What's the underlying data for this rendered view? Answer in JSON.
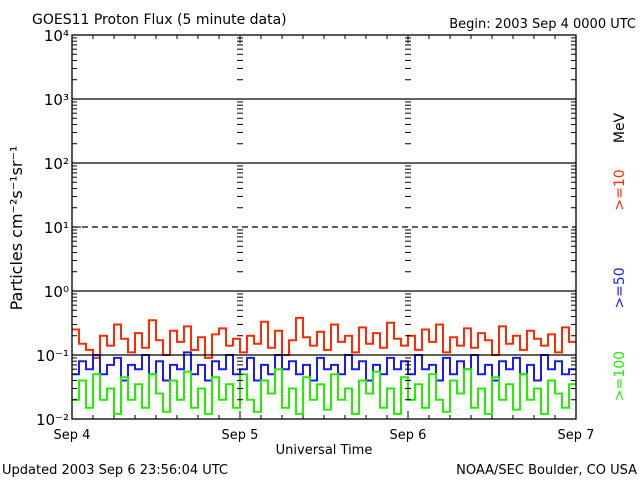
{
  "chart_data": {
    "type": "line",
    "title": "GOES11 Proton Flux (5 minute data)",
    "begin_label": "Begin: 2003 Sep 4 0000 UTC",
    "xlabel": "Universal Time",
    "ylabel": "Particles cm⁻²s⁻¹sr⁻¹",
    "y_scale": "log",
    "ylim": [
      0.01,
      10000
    ],
    "y_ticks": [
      {
        "value": 10000,
        "label": "10⁴"
      },
      {
        "value": 1000,
        "label": "10³"
      },
      {
        "value": 100,
        "label": "10²"
      },
      {
        "value": 10,
        "label": "10¹"
      },
      {
        "value": 1,
        "label": "10⁰"
      },
      {
        "value": 0.1,
        "label": "10⁻¹"
      },
      {
        "value": 0.01,
        "label": "10⁻²"
      }
    ],
    "x_ticks": [
      "Sep 4",
      "Sep 5",
      "Sep 6",
      "Sep 7"
    ],
    "x_unit": "hours since 2003 Sep 4 0000 UTC",
    "xlim": [
      0,
      72
    ],
    "threshold_lines": [
      {
        "value": 1000,
        "style": "solid"
      },
      {
        "value": 100,
        "style": "solid"
      },
      {
        "value": 10,
        "style": "dashed"
      },
      {
        "value": 1,
        "style": "solid"
      },
      {
        "value": 0.1,
        "style": "solid"
      }
    ],
    "unit_label": "MeV",
    "series": [
      {
        "name": ">=10",
        "color": "#ff2a00",
        "values": [
          0.25,
          0.15,
          0.12,
          0.09,
          0.2,
          0.14,
          0.3,
          0.18,
          0.11,
          0.22,
          0.13,
          0.35,
          0.17,
          0.1,
          0.24,
          0.16,
          0.28,
          0.12,
          0.19,
          0.09,
          0.21,
          0.26,
          0.14,
          0.18,
          0.11,
          0.2,
          0.15,
          0.33,
          0.13,
          0.24,
          0.1,
          0.17,
          0.38,
          0.19,
          0.14,
          0.23,
          0.12,
          0.3,
          0.16,
          0.2,
          0.11,
          0.27,
          0.15,
          0.22,
          0.13,
          0.32,
          0.18,
          0.14,
          0.2,
          0.12,
          0.25,
          0.16,
          0.3,
          0.11,
          0.19,
          0.14,
          0.26,
          0.13,
          0.22,
          0.17,
          0.1,
          0.28,
          0.15,
          0.2,
          0.12,
          0.24,
          0.18,
          0.14,
          0.21,
          0.11,
          0.27,
          0.16
        ]
      },
      {
        "name": ">=50",
        "color": "#1a1aff",
        "values": [
          0.05,
          0.08,
          0.06,
          0.1,
          0.05,
          0.07,
          0.09,
          0.04,
          0.07,
          0.06,
          0.1,
          0.05,
          0.08,
          0.04,
          0.07,
          0.06,
          0.11,
          0.05,
          0.07,
          0.04,
          0.08,
          0.06,
          0.1,
          0.05,
          0.06,
          0.09,
          0.04,
          0.07,
          0.05,
          0.1,
          0.06,
          0.08,
          0.05,
          0.07,
          0.04,
          0.09,
          0.06,
          0.07,
          0.05,
          0.1,
          0.06,
          0.08,
          0.04,
          0.07,
          0.05,
          0.09,
          0.06,
          0.08,
          0.05,
          0.1,
          0.06,
          0.07,
          0.04,
          0.09,
          0.05,
          0.08,
          0.06,
          0.1,
          0.05,
          0.07,
          0.04,
          0.08,
          0.06,
          0.09,
          0.05,
          0.07,
          0.04,
          0.1,
          0.06,
          0.08,
          0.05,
          0.06
        ]
      },
      {
        "name": ">=100",
        "color": "#22ee00",
        "values": [
          0.02,
          0.04,
          0.015,
          0.05,
          0.02,
          0.03,
          0.012,
          0.045,
          0.02,
          0.035,
          0.015,
          0.05,
          0.025,
          0.013,
          0.04,
          0.02,
          0.055,
          0.015,
          0.03,
          0.012,
          0.045,
          0.02,
          0.035,
          0.015,
          0.05,
          0.02,
          0.013,
          0.04,
          0.025,
          0.06,
          0.015,
          0.03,
          0.012,
          0.045,
          0.02,
          0.035,
          0.014,
          0.05,
          0.02,
          0.03,
          0.012,
          0.04,
          0.025,
          0.055,
          0.015,
          0.03,
          0.012,
          0.045,
          0.02,
          0.035,
          0.015,
          0.05,
          0.02,
          0.013,
          0.04,
          0.025,
          0.06,
          0.015,
          0.03,
          0.012,
          0.045,
          0.02,
          0.035,
          0.014,
          0.05,
          0.02,
          0.03,
          0.012,
          0.04,
          0.025,
          0.015,
          0.035
        ]
      }
    ]
  },
  "footer": {
    "updated": "Updated 2003 Sep  6 23:56:04 UTC",
    "source": "NOAA/SEC Boulder, CO USA"
  }
}
